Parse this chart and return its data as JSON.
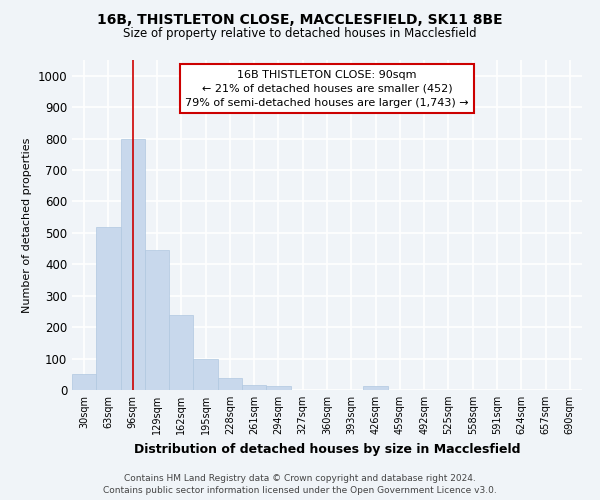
{
  "title_line1": "16B, THISTLETON CLOSE, MACCLESFIELD, SK11 8BE",
  "title_line2": "Size of property relative to detached houses in Macclesfield",
  "xlabel": "Distribution of detached houses by size in Macclesfield",
  "ylabel": "Number of detached properties",
  "bar_color": "#c8d8ec",
  "bar_edge_color": "#b0c8e0",
  "categories": [
    "30sqm",
    "63sqm",
    "96sqm",
    "129sqm",
    "162sqm",
    "195sqm",
    "228sqm",
    "261sqm",
    "294sqm",
    "327sqm",
    "360sqm",
    "393sqm",
    "426sqm",
    "459sqm",
    "492sqm",
    "525sqm",
    "558sqm",
    "591sqm",
    "624sqm",
    "657sqm",
    "690sqm"
  ],
  "values": [
    52,
    520,
    800,
    445,
    240,
    98,
    38,
    17,
    12,
    0,
    0,
    0,
    12,
    0,
    0,
    0,
    0,
    0,
    0,
    0,
    0
  ],
  "ylim": [
    0,
    1050
  ],
  "yticks": [
    0,
    100,
    200,
    300,
    400,
    500,
    600,
    700,
    800,
    900,
    1000
  ],
  "property_line_x": 2.0,
  "property_line_color": "#cc0000",
  "annotation_text": "16B THISTLETON CLOSE: 90sqm\n← 21% of detached houses are smaller (452)\n79% of semi-detached houses are larger (1,743) →",
  "annotation_box_color": "#cc0000",
  "footer_line1": "Contains HM Land Registry data © Crown copyright and database right 2024.",
  "footer_line2": "Contains public sector information licensed under the Open Government Licence v3.0.",
  "background_color": "#f0f4f8",
  "grid_color": "#dce8f0"
}
